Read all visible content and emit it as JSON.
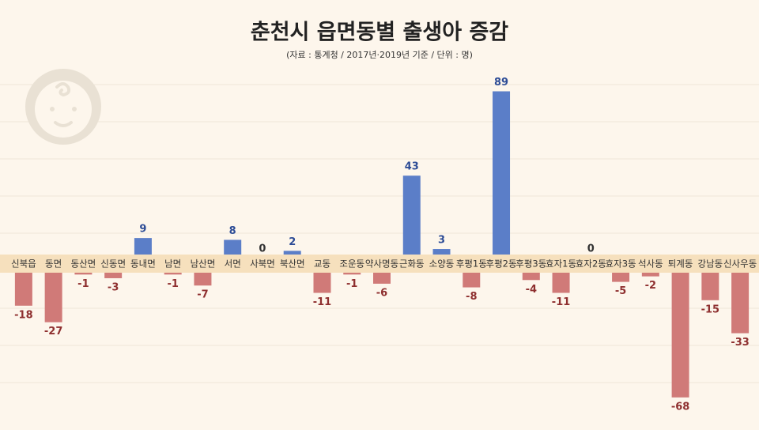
{
  "chart_data": {
    "type": "bar",
    "title": "춘천시 읍면동별 출생아 증감",
    "subtitle": "(자료 : 통계청 / 2017년·2019년 기준 / 단위 : 명)",
    "categories": [
      "신북읍",
      "동면",
      "동산면",
      "신동면",
      "동내면",
      "남면",
      "남산면",
      "서면",
      "사북면",
      "북산면",
      "교동",
      "조운동",
      "약사명동",
      "근화동",
      "소양동",
      "후평1동",
      "후평2동",
      "후평3동",
      "효자1동",
      "효자2동",
      "효자3동",
      "석사동",
      "퇴계동",
      "강남동",
      "신사우동"
    ],
    "values": [
      -18,
      -27,
      -1,
      -3,
      9,
      -1,
      -7,
      8,
      0,
      2,
      -11,
      -1,
      -6,
      43,
      3,
      -8,
      89,
      -4,
      -11,
      0,
      -5,
      -2,
      -68,
      -15,
      -33
    ],
    "colors": {
      "positive": "#5b7ec8",
      "negative": "#d07a78"
    }
  }
}
